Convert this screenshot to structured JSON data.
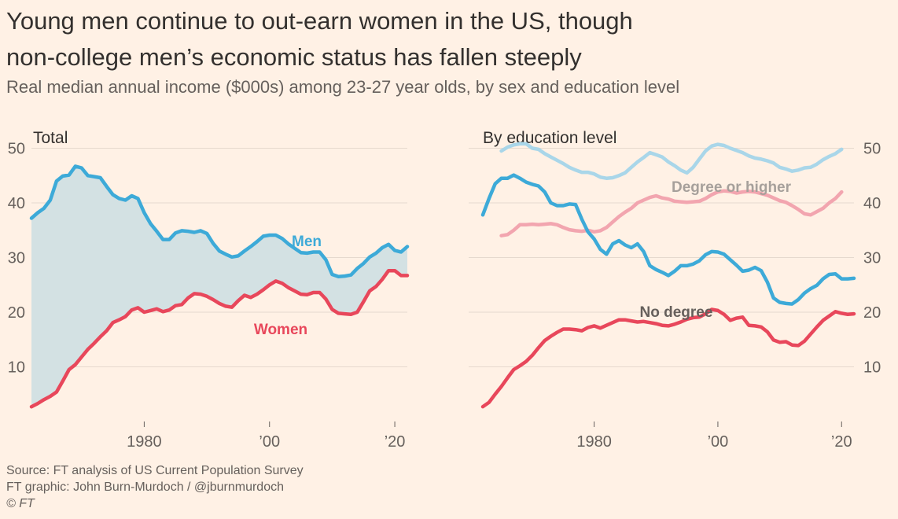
{
  "title_line1": "Young men continue to out-earn women in the US, though",
  "title_line2": "non-college men’s economic status has fallen steeply",
  "subtitle": "Real median annual income ($000s) among 23-27 year olds, by sex and education level",
  "footer": {
    "source": "Source: FT analysis of US Current Population Survey",
    "graphic": "FT graphic: John Burn-Murdoch / @jburnmurdoch",
    "credit": "© FT"
  },
  "colors": {
    "background": "#FFF1E5",
    "grid": "#E6D9CE",
    "men": "#3DAAD8",
    "women": "#E8475B",
    "men_degree": "#A9D6E9",
    "women_degree": "#F2A5AF",
    "fill": "#D3E1E3",
    "text": "#33302E",
    "tick": "#66605C",
    "degree_label": "#A6A09B",
    "nodegree_label": "#66605C"
  },
  "chart_data": [
    {
      "type": "line",
      "title": "Total",
      "xlabel": "",
      "ylabel": "",
      "xlim": [
        1962,
        2022
      ],
      "ylim": [
        0,
        50
      ],
      "x_ticks": [
        1980,
        2000,
        2020
      ],
      "x_tick_labels": [
        "1980",
        "’00",
        "’20"
      ],
      "y_ticks": [
        10,
        20,
        30,
        40,
        50
      ],
      "y_tick_labels": [
        "10",
        "20",
        "30",
        "40",
        "50"
      ],
      "y_axis_side": "left",
      "fill_between": [
        "Men",
        "Women"
      ],
      "series": [
        {
          "name": "Men",
          "label": "Men",
          "color": "#3DAAD8",
          "x": [
            1962,
            1963,
            1964,
            1965,
            1966,
            1967,
            1968,
            1969,
            1970,
            1971,
            1972,
            1973,
            1974,
            1975,
            1976,
            1977,
            1978,
            1979,
            1980,
            1981,
            1982,
            1983,
            1984,
            1985,
            1986,
            1987,
            1988,
            1989,
            1990,
            1991,
            1992,
            1993,
            1994,
            1995,
            1996,
            1997,
            1998,
            1999,
            2000,
            2001,
            2002,
            2003,
            2004,
            2005,
            2006,
            2007,
            2008,
            2009,
            2010,
            2011,
            2012,
            2013,
            2014,
            2015,
            2016,
            2017,
            2018,
            2019,
            2020,
            2021,
            2022
          ],
          "values": [
            37.2,
            38.2,
            39.0,
            40.5,
            44.0,
            44.9,
            45.1,
            46.7,
            46.4,
            45.0,
            44.8,
            44.6,
            43.0,
            41.5,
            40.8,
            40.5,
            41.3,
            40.8,
            38.2,
            36.2,
            34.8,
            33.3,
            33.3,
            34.5,
            34.9,
            34.8,
            34.6,
            34.9,
            34.4,
            32.6,
            31.2,
            30.6,
            30.1,
            30.3,
            31.2,
            32.0,
            32.9,
            33.9,
            34.1,
            34.1,
            33.5,
            32.5,
            31.7,
            30.9,
            30.8,
            31.0,
            31.0,
            29.6,
            26.9,
            26.5,
            26.6,
            26.8,
            28.0,
            28.9,
            30.1,
            30.8,
            31.8,
            32.4,
            31.3,
            31.0,
            32.0
          ]
        },
        {
          "name": "Women",
          "label": "Women",
          "color": "#E8475B",
          "x": [
            1962,
            1963,
            1964,
            1965,
            1966,
            1967,
            1968,
            1969,
            1970,
            1971,
            1972,
            1973,
            1974,
            1975,
            1976,
            1977,
            1978,
            1979,
            1980,
            1981,
            1982,
            1983,
            1984,
            1985,
            1986,
            1987,
            1988,
            1989,
            1990,
            1991,
            1992,
            1993,
            1994,
            1995,
            1996,
            1997,
            1998,
            1999,
            2000,
            2001,
            2002,
            2003,
            2004,
            2005,
            2006,
            2007,
            2008,
            2009,
            2010,
            2011,
            2012,
            2013,
            2014,
            2015,
            2016,
            2017,
            2018,
            2019,
            2020,
            2021,
            2022
          ],
          "values": [
            2.7,
            3.3,
            4.0,
            4.6,
            5.4,
            7.4,
            9.5,
            10.4,
            11.8,
            13.2,
            14.3,
            15.5,
            16.6,
            18.1,
            18.6,
            19.2,
            20.4,
            20.8,
            20.0,
            20.3,
            20.6,
            20.1,
            20.4,
            21.2,
            21.4,
            22.6,
            23.4,
            23.3,
            22.9,
            22.3,
            21.6,
            21.1,
            20.9,
            22.1,
            23.1,
            22.7,
            23.3,
            24.1,
            25.0,
            25.7,
            25.3,
            24.5,
            23.9,
            23.3,
            23.2,
            23.6,
            23.6,
            22.4,
            20.5,
            19.8,
            19.7,
            19.6,
            20.0,
            21.9,
            23.9,
            24.7,
            26.0,
            27.6,
            27.6,
            26.7,
            26.7
          ]
        }
      ]
    },
    {
      "type": "line",
      "title": "By education level",
      "xlabel": "",
      "ylabel": "",
      "xlim": [
        1962,
        2022
      ],
      "ylim": [
        0,
        50
      ],
      "x_ticks": [
        1980,
        2000,
        2020
      ],
      "x_tick_labels": [
        "1980",
        "’00",
        "’20"
      ],
      "y_ticks": [
        10,
        20,
        30,
        40,
        50
      ],
      "y_tick_labels": [
        "10",
        "20",
        "30",
        "40",
        "50"
      ],
      "y_axis_side": "right",
      "annotations": [
        "Degree or higher",
        "No degree"
      ],
      "series": [
        {
          "name": "Men, degree or higher",
          "color": "#A9D6E9",
          "x": [
            1965,
            1966,
            1967,
            1968,
            1969,
            1970,
            1971,
            1972,
            1973,
            1974,
            1975,
            1976,
            1977,
            1978,
            1979,
            1980,
            1981,
            1982,
            1983,
            1984,
            1985,
            1986,
            1987,
            1988,
            1989,
            1990,
            1991,
            1992,
            1993,
            1994,
            1995,
            1996,
            1997,
            1998,
            1999,
            2000,
            2001,
            2002,
            2003,
            2004,
            2005,
            2006,
            2007,
            2008,
            2009,
            2010,
            2011,
            2012,
            2013,
            2014,
            2015,
            2016,
            2017,
            2018,
            2019,
            2020
          ],
          "values": [
            49.5,
            50.2,
            50.6,
            50.8,
            50.8,
            50.0,
            49.8,
            49.0,
            48.4,
            47.8,
            47.2,
            46.5,
            46.0,
            45.6,
            45.6,
            45.3,
            44.7,
            44.5,
            44.6,
            45.0,
            45.5,
            46.5,
            47.5,
            48.3,
            49.2,
            48.8,
            48.4,
            47.5,
            46.8,
            46.0,
            45.5,
            46.5,
            48.0,
            49.5,
            50.4,
            50.7,
            50.5,
            50.0,
            49.6,
            49.2,
            48.6,
            48.2,
            48.0,
            47.7,
            47.3,
            46.5,
            46.2,
            45.8,
            46.0,
            46.4,
            46.5,
            47.1,
            47.9,
            48.5,
            49.0,
            49.8
          ]
        },
        {
          "name": "Women, degree or higher",
          "color": "#F2A5AF",
          "x": [
            1965,
            1966,
            1967,
            1968,
            1969,
            1970,
            1971,
            1972,
            1973,
            1974,
            1975,
            1976,
            1977,
            1978,
            1979,
            1980,
            1981,
            1982,
            1983,
            1984,
            1985,
            1986,
            1987,
            1988,
            1989,
            1990,
            1991,
            1992,
            1993,
            1994,
            1995,
            1996,
            1997,
            1998,
            1999,
            2000,
            2001,
            2002,
            2003,
            2004,
            2005,
            2006,
            2007,
            2008,
            2009,
            2010,
            2011,
            2012,
            2013,
            2014,
            2015,
            2016,
            2017,
            2018,
            2019,
            2020
          ],
          "values": [
            34.0,
            34.2,
            35.0,
            36.0,
            36.0,
            36.1,
            36.0,
            36.1,
            36.2,
            36.0,
            35.5,
            35.1,
            34.9,
            34.8,
            35.0,
            34.7,
            34.9,
            35.5,
            36.5,
            37.5,
            38.3,
            39.0,
            40.0,
            40.5,
            41.0,
            41.3,
            40.9,
            40.7,
            40.3,
            40.2,
            40.1,
            40.2,
            40.3,
            40.8,
            41.5,
            42.0,
            42.2,
            42.1,
            41.8,
            42.0,
            42.1,
            42.0,
            41.7,
            41.4,
            40.9,
            40.4,
            40.1,
            39.5,
            38.8,
            38.0,
            37.8,
            38.4,
            39.0,
            40.0,
            40.8,
            42.0
          ]
        },
        {
          "name": "Men, no degree",
          "color": "#3DAAD8",
          "x": [
            1962,
            1963,
            1964,
            1965,
            1966,
            1967,
            1968,
            1969,
            1970,
            1971,
            1972,
            1973,
            1974,
            1975,
            1976,
            1977,
            1978,
            1979,
            1980,
            1981,
            1982,
            1983,
            1984,
            1985,
            1986,
            1987,
            1988,
            1989,
            1990,
            1991,
            1992,
            1993,
            1994,
            1995,
            1996,
            1997,
            1998,
            1999,
            2000,
            2001,
            2002,
            2003,
            2004,
            2005,
            2006,
            2007,
            2008,
            2009,
            2010,
            2011,
            2012,
            2013,
            2014,
            2015,
            2016,
            2017,
            2018,
            2019,
            2020,
            2021,
            2022
          ],
          "values": [
            37.8,
            40.8,
            43.5,
            44.5,
            44.5,
            45.1,
            44.5,
            43.8,
            43.4,
            43.1,
            42.0,
            40.0,
            39.5,
            39.5,
            39.8,
            39.7,
            37.0,
            34.7,
            33.4,
            31.5,
            30.6,
            32.5,
            33.1,
            32.3,
            31.8,
            32.5,
            31.1,
            28.5,
            27.8,
            27.3,
            26.7,
            27.5,
            28.5,
            28.5,
            28.8,
            29.4,
            30.5,
            31.1,
            31.0,
            30.6,
            29.6,
            28.6,
            27.5,
            27.7,
            28.2,
            27.6,
            25.5,
            22.6,
            21.8,
            21.6,
            21.5,
            22.3,
            23.5,
            24.3,
            24.9,
            26.1,
            26.9,
            27.0,
            26.1,
            26.1,
            26.2
          ]
        },
        {
          "name": "Women, no degree",
          "color": "#E8475B",
          "x": [
            1962,
            1963,
            1964,
            1965,
            1966,
            1967,
            1968,
            1969,
            1970,
            1971,
            1972,
            1973,
            1974,
            1975,
            1976,
            1977,
            1978,
            1979,
            1980,
            1981,
            1982,
            1983,
            1984,
            1985,
            1986,
            1987,
            1988,
            1989,
            1990,
            1991,
            1992,
            1993,
            1994,
            1995,
            1996,
            1997,
            1998,
            1999,
            2000,
            2001,
            2002,
            2003,
            2004,
            2005,
            2006,
            2007,
            2008,
            2009,
            2010,
            2011,
            2012,
            2013,
            2014,
            2015,
            2016,
            2017,
            2018,
            2019,
            2020,
            2021,
            2022
          ],
          "values": [
            2.7,
            3.5,
            5.0,
            6.4,
            8.0,
            9.5,
            10.2,
            11.0,
            12.1,
            13.5,
            14.8,
            15.6,
            16.3,
            16.9,
            16.9,
            16.8,
            16.6,
            17.2,
            17.5,
            17.1,
            17.6,
            18.1,
            18.6,
            18.6,
            18.4,
            18.2,
            18.3,
            18.1,
            17.9,
            17.6,
            17.5,
            17.8,
            18.2,
            18.7,
            19.0,
            19.1,
            19.7,
            20.5,
            20.3,
            19.6,
            18.5,
            18.9,
            19.1,
            17.6,
            17.5,
            17.3,
            16.4,
            14.9,
            14.5,
            14.6,
            14.0,
            13.9,
            14.7,
            16.0,
            17.3,
            18.5,
            19.3,
            20.1,
            19.8,
            19.6,
            19.7
          ]
        }
      ]
    }
  ]
}
